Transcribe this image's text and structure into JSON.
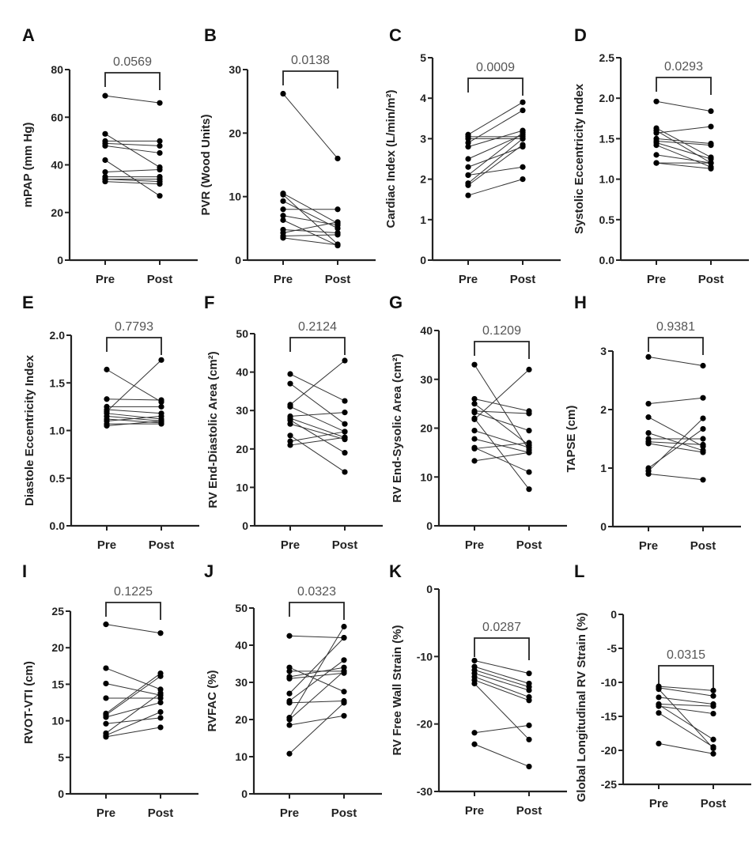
{
  "chart_data": [
    {
      "panel": "A",
      "type": "line",
      "ylabel": "mPAP (mm Hg)",
      "categories": [
        "Pre",
        "Post"
      ],
      "p_value": "0.0569",
      "ylim": [
        0,
        80
      ],
      "ticks": [
        0,
        20,
        40,
        60,
        80
      ],
      "tick_labels": [
        "0",
        "20",
        "40",
        "60",
        "80"
      ],
      "pairs": [
        [
          69,
          66
        ],
        [
          53,
          39
        ],
        [
          50,
          50
        ],
        [
          49,
          48
        ],
        [
          48,
          45
        ],
        [
          42,
          27
        ],
        [
          37,
          38
        ],
        [
          35,
          35
        ],
        [
          34,
          34
        ],
        [
          33,
          32
        ],
        [
          34,
          33
        ]
      ]
    },
    {
      "panel": "B",
      "type": "line",
      "ylabel": "PVR (Wood Units)",
      "categories": [
        "Pre",
        "Post"
      ],
      "p_value": "0.0138",
      "ylim": [
        0,
        30
      ],
      "ticks": [
        0,
        10,
        20,
        30
      ],
      "tick_labels": [
        "0",
        "10",
        "20",
        "30"
      ],
      "pairs": [
        [
          26.2,
          16
        ],
        [
          10.5,
          5.8
        ],
        [
          10.3,
          2.5
        ],
        [
          9.3,
          5
        ],
        [
          8,
          8
        ],
        [
          7,
          5.5
        ],
        [
          6.3,
          2.3
        ],
        [
          4.8,
          4.3
        ],
        [
          4.3,
          6
        ],
        [
          3.8,
          4
        ],
        [
          3.5,
          2.4
        ]
      ]
    },
    {
      "panel": "C",
      "type": "line",
      "ylabel": "Cardiac Index (L/min/m²)",
      "categories": [
        "Pre",
        "Post"
      ],
      "p_value": "0.0009",
      "ylim": [
        0,
        5
      ],
      "ticks": [
        0,
        1,
        2,
        3,
        4,
        5
      ],
      "tick_labels": [
        "0",
        "1",
        "2",
        "3",
        "4",
        "5"
      ],
      "pairs": [
        [
          3.1,
          3.9
        ],
        [
          3.05,
          3.05
        ],
        [
          3.0,
          3.0
        ],
        [
          2.9,
          3.7
        ],
        [
          2.8,
          3.2
        ],
        [
          2.5,
          3.1
        ],
        [
          2.3,
          2.8
        ],
        [
          2.1,
          3.15
        ],
        [
          2.1,
          2.3
        ],
        [
          1.9,
          3.0
        ],
        [
          1.85,
          2.85
        ],
        [
          1.6,
          2.0
        ]
      ]
    },
    {
      "panel": "D",
      "type": "line",
      "ylabel": "Systolic Eccentricity Index",
      "categories": [
        "Pre",
        "Post"
      ],
      "p_value": "0.0293",
      "ylim": [
        0,
        2.5
      ],
      "ticks": [
        0,
        0.5,
        1,
        1.5,
        2,
        2.5
      ],
      "tick_labels": [
        "0.0",
        "0.5",
        "1.0",
        "1.5",
        "2.0",
        "2.5"
      ],
      "pairs": [
        [
          1.96,
          1.84
        ],
        [
          1.63,
          1.27
        ],
        [
          1.6,
          1.2
        ],
        [
          1.57,
          1.65
        ],
        [
          1.5,
          1.44
        ],
        [
          1.47,
          1.42
        ],
        [
          1.45,
          1.25
        ],
        [
          1.42,
          1.15
        ],
        [
          1.3,
          1.2
        ],
        [
          1.2,
          1.2
        ],
        [
          1.2,
          1.13
        ]
      ]
    },
    {
      "panel": "E",
      "type": "line",
      "ylabel": "Diastole Eccentricity Index",
      "categories": [
        "Pre",
        "Post"
      ],
      "p_value": "0.7793",
      "ylim": [
        0,
        2
      ],
      "ticks": [
        0,
        0.5,
        1,
        1.5,
        2
      ],
      "tick_labels": [
        "0.0",
        "0.5",
        "1.0",
        "1.5",
        "2.0"
      ],
      "pairs": [
        [
          1.64,
          1.3
        ],
        [
          1.33,
          1.32
        ],
        [
          1.25,
          1.25
        ],
        [
          1.22,
          1.18
        ],
        [
          1.2,
          1.74
        ],
        [
          1.18,
          1.12
        ],
        [
          1.15,
          1.1
        ],
        [
          1.12,
          1.08
        ],
        [
          1.1,
          1.15
        ],
        [
          1.07,
          1.07
        ],
        [
          1.05,
          1.1
        ]
      ]
    },
    {
      "panel": "F",
      "type": "line",
      "ylabel": "RV End-Diastolic Area (cm²)",
      "categories": [
        "Pre",
        "Post"
      ],
      "p_value": "0.2124",
      "ylim": [
        0,
        50
      ],
      "ticks": [
        0,
        10,
        20,
        30,
        40,
        50
      ],
      "tick_labels": [
        "0",
        "10",
        "20",
        "30",
        "40",
        "50"
      ],
      "pairs": [
        [
          39.5,
          32.5
        ],
        [
          37,
          26.5
        ],
        [
          31.5,
          43
        ],
        [
          31,
          24.5
        ],
        [
          28.5,
          29.5
        ],
        [
          28,
          23
        ],
        [
          27.5,
          19
        ],
        [
          26.5,
          22.5
        ],
        [
          23.5,
          14
        ],
        [
          22,
          24.5
        ],
        [
          21,
          23
        ]
      ]
    },
    {
      "panel": "G",
      "type": "line",
      "ylabel": "RV End-Sysolic Area (cm²)",
      "categories": [
        "Pre",
        "Post"
      ],
      "p_value": "0.1209",
      "ylim": [
        0,
        40
      ],
      "ticks": [
        0,
        10,
        20,
        30,
        40
      ],
      "tick_labels": [
        "0",
        "10",
        "20",
        "30",
        "40"
      ],
      "pairs": [
        [
          33,
          15.5
        ],
        [
          26,
          23.5
        ],
        [
          25,
          16.5
        ],
        [
          23.5,
          23
        ],
        [
          23.2,
          19.5
        ],
        [
          22,
          7.5
        ],
        [
          21.8,
          32
        ],
        [
          19.5,
          16
        ],
        [
          17.8,
          15
        ],
        [
          16,
          11
        ],
        [
          15.8,
          17
        ],
        [
          13.3,
          15
        ]
      ]
    },
    {
      "panel": "H",
      "type": "line",
      "ylabel": "TAPSE (cm)",
      "categories": [
        "Pre",
        "Post"
      ],
      "p_value": "0.9381",
      "ylim": [
        0,
        3
      ],
      "ticks": [
        0,
        1,
        2,
        3
      ],
      "tick_labels": [
        "0",
        "1",
        "2",
        "3"
      ],
      "pairs": [
        [
          2.9,
          2.75
        ],
        [
          2.1,
          2.2
        ],
        [
          1.87,
          1.37
        ],
        [
          1.6,
          1.3
        ],
        [
          1.5,
          1.5
        ],
        [
          1.45,
          1.4
        ],
        [
          1.42,
          1.27
        ],
        [
          1.0,
          1.67
        ],
        [
          0.95,
          1.85
        ],
        [
          0.9,
          0.8
        ]
      ]
    },
    {
      "panel": "I",
      "type": "line",
      "ylabel": "RVOT-VTI (cm)",
      "categories": [
        "Pre",
        "Post"
      ],
      "p_value": "0.1225",
      "ylim": [
        0,
        25
      ],
      "ticks": [
        0,
        5,
        10,
        15,
        20,
        25
      ],
      "tick_labels": [
        "0",
        "5",
        "10",
        "15",
        "20",
        "25"
      ],
      "pairs": [
        [
          23.2,
          22
        ],
        [
          17.2,
          14.3
        ],
        [
          15.1,
          13.5
        ],
        [
          13.1,
          13.1
        ],
        [
          11,
          16.5
        ],
        [
          10.8,
          16.1
        ],
        [
          10.5,
          12.5
        ],
        [
          9.6,
          10.4
        ],
        [
          8.3,
          13.8
        ],
        [
          8,
          11.2
        ],
        [
          7.8,
          9.1
        ]
      ]
    },
    {
      "panel": "J",
      "type": "line",
      "ylabel": "RVFAC (%)",
      "categories": [
        "Pre",
        "Post"
      ],
      "p_value": "0.0323",
      "ylim": [
        0,
        50
      ],
      "ticks": [
        0,
        10,
        20,
        30,
        40,
        50
      ],
      "tick_labels": [
        "0",
        "10",
        "20",
        "30",
        "40",
        "50"
      ],
      "pairs": [
        [
          42.5,
          42
        ],
        [
          34,
          27.5
        ],
        [
          33,
          33
        ],
        [
          31.5,
          34
        ],
        [
          31,
          32.5
        ],
        [
          27,
          42
        ],
        [
          25,
          36
        ],
        [
          24.5,
          25
        ],
        [
          20.5,
          45
        ],
        [
          20,
          33
        ],
        [
          18.5,
          21
        ],
        [
          10.8,
          24.5
        ]
      ]
    },
    {
      "panel": "K",
      "type": "line",
      "ylabel": "RV Free Wall Strain (%)",
      "categories": [
        "Pre",
        "Post"
      ],
      "p_value": "0.0287",
      "ylim": [
        -30,
        0
      ],
      "ticks": [
        -30,
        -20,
        -10,
        0
      ],
      "tick_labels": [
        "-30",
        "-20",
        "-10",
        "0"
      ],
      "pairs": [
        [
          -10.6,
          -12.5
        ],
        [
          -11.5,
          -14
        ],
        [
          -12,
          -14.5
        ],
        [
          -12.5,
          -15
        ],
        [
          -13,
          -16
        ],
        [
          -13.5,
          -16.5
        ],
        [
          -14,
          -22.3
        ],
        [
          -21.3,
          -20.2
        ],
        [
          -23,
          -26.3
        ]
      ]
    },
    {
      "panel": "L",
      "type": "line",
      "ylabel": "Global Longitudinal  RV  Strain (%)",
      "categories": [
        "Pre",
        "Post"
      ],
      "p_value": "0.0315",
      "ylim": [
        -25,
        0
      ],
      "ticks": [
        -25,
        -20,
        -15,
        -10,
        -5,
        0
      ],
      "tick_labels": [
        "-25",
        "-20",
        "-15",
        "-10",
        "-5",
        "0"
      ],
      "pairs": [
        [
          -10.6,
          -11.2
        ],
        [
          -10.8,
          -12
        ],
        [
          -11,
          -19.7
        ],
        [
          -12.2,
          -13.2
        ],
        [
          -13.2,
          -13.5
        ],
        [
          -13.5,
          -14.6
        ],
        [
          -14.5,
          -19.5
        ],
        [
          -13.3,
          -18.4
        ],
        [
          -19,
          -20.5
        ]
      ]
    }
  ]
}
